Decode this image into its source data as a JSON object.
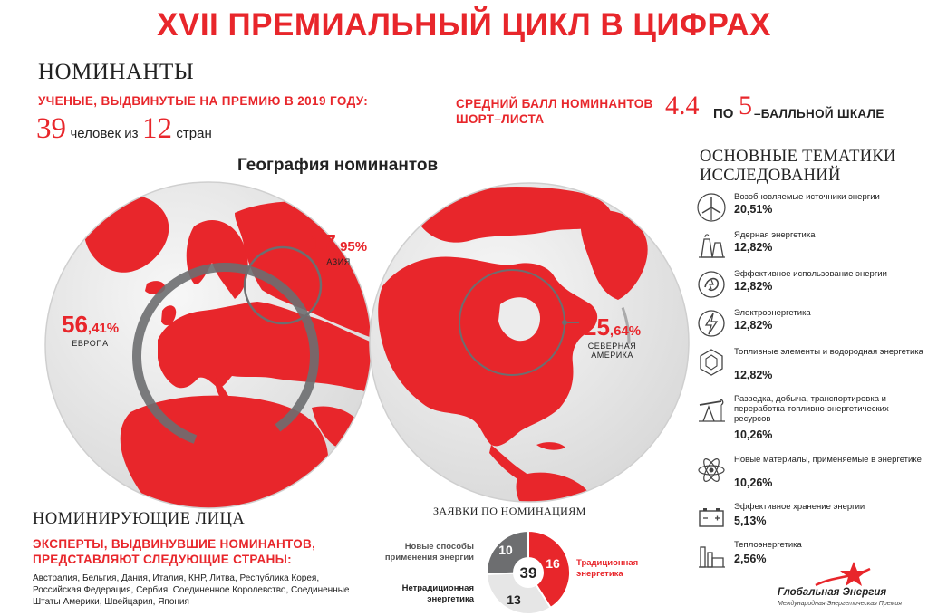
{
  "title": "XVII ПРЕМИАЛЬНЫЙ ЦИКЛ В ЦИФРАХ",
  "nominees": {
    "heading": "НОМИНАНТЫ",
    "scientists_label": "УЧЕНЫЕ, ВЫДВИНУТЫЕ НА ПРЕМИЮ В 2019 ГОДУ:",
    "people_count": "39",
    "people_text": "человек из",
    "countries_count": "12",
    "countries_text": "стран"
  },
  "score": {
    "label_line1": "СРЕДНИЙ БАЛЛ НОМИНАНТОВ",
    "label_line2": "ШОРТ–ЛИСТА",
    "value": "4.4",
    "po": "ПО",
    "five": "5",
    "scale_text": "–БАЛЛЬНОЙ ШКАЛЕ"
  },
  "geography": {
    "title": "География номинантов",
    "europe": {
      "whole": "56",
      "frac": ",41%",
      "name": "ЕВРОПА",
      "value": 56.41
    },
    "asia": {
      "whole": "17",
      "frac": ",95%",
      "name": "АЗИЯ",
      "value": 17.95
    },
    "north_america": {
      "whole": "25",
      "frac": ",64%",
      "name_line1": "СЕВЕРНАЯ",
      "name_line2": "АМЕРИКА",
      "value": 25.64
    }
  },
  "topics": {
    "heading_line1": "ОСНОВНЫЕ ТЕМАТИКИ",
    "heading_line2": "ИССЛЕДОВАНИЙ",
    "items": [
      {
        "name": "Возобновляемые источники энергии",
        "value": "20,51%",
        "icon": "wind-turbine-icon"
      },
      {
        "name": "Ядерная энергетика",
        "value": "12,82%",
        "icon": "nuclear-plant-icon"
      },
      {
        "name": "Эффективное использование энергии",
        "value": "12,82%",
        "icon": "efficiency-icon"
      },
      {
        "name": "Электроэнергетика",
        "value": "12,82%",
        "icon": "lightning-icon"
      },
      {
        "name": "Топливные элементы и водородная энергетика",
        "value": "12,82%",
        "icon": "hydrogen-icon"
      },
      {
        "name": "Разведка, добыча, транспортировка и переработка топливно-энергетических ресурсов",
        "value": "10,26%",
        "icon": "oil-pump-icon"
      },
      {
        "name": "Новые материалы, применяемые в энергетике",
        "value": "10,26%",
        "icon": "molecule-icon"
      },
      {
        "name": "Эффективное хранение энергии",
        "value": "5,13%",
        "icon": "battery-icon"
      },
      {
        "name": "Теплоэнергетика",
        "value": "2,56%",
        "icon": "thermal-plant-icon"
      }
    ]
  },
  "nominating": {
    "heading": "НОМИНИРУЮЩИЕ ЛИЦА",
    "experts_label": "ЭКСПЕРТЫ, ВЫДВИНУВШИЕ НОМИНАНТОВ, ПРЕДСТАВЛЯЮТ СЛЕДУЮЩИЕ СТРАНЫ:",
    "countries": "Австралия, Бельгия, Дания, Италия, КНР, Литва, Республика Корея, Российская Федерация, Сербия, Соединенное Королевство, Соединенные Штаты Америки, Швейцария, Япония"
  },
  "applications": {
    "title": "ЗАЯВКИ ПО НОМИНАЦИЯМ",
    "total": "39",
    "new_methods_line1": "Новые способы",
    "new_methods_line2": "применения энергии",
    "traditional_line1": "Традиционная",
    "traditional_line2": "энергетика",
    "nontraditional_line1": "Нетрадиционная",
    "nontraditional_line2": "энергетика"
  },
  "chart_data": {
    "type": "pie",
    "title": "ЗАЯВКИ ПО НОМИНАЦИЯМ",
    "center_label": "39",
    "slices": [
      {
        "label": "Традиционная энергетика",
        "value": 16,
        "color": "#e8262b"
      },
      {
        "label": "Нетрадиционная энергетика",
        "value": 13,
        "color": "#e6e6e6"
      },
      {
        "label": "Новые способы применения энергии",
        "value": 10,
        "color": "#6d6e70"
      }
    ]
  },
  "logo": {
    "name": "Глобальная Энергия",
    "subtitle": "Международная Энергетическая Премия"
  },
  "colors": {
    "accent": "#e8262b",
    "ocean": "#ececec",
    "dark": "#6d6e70"
  }
}
